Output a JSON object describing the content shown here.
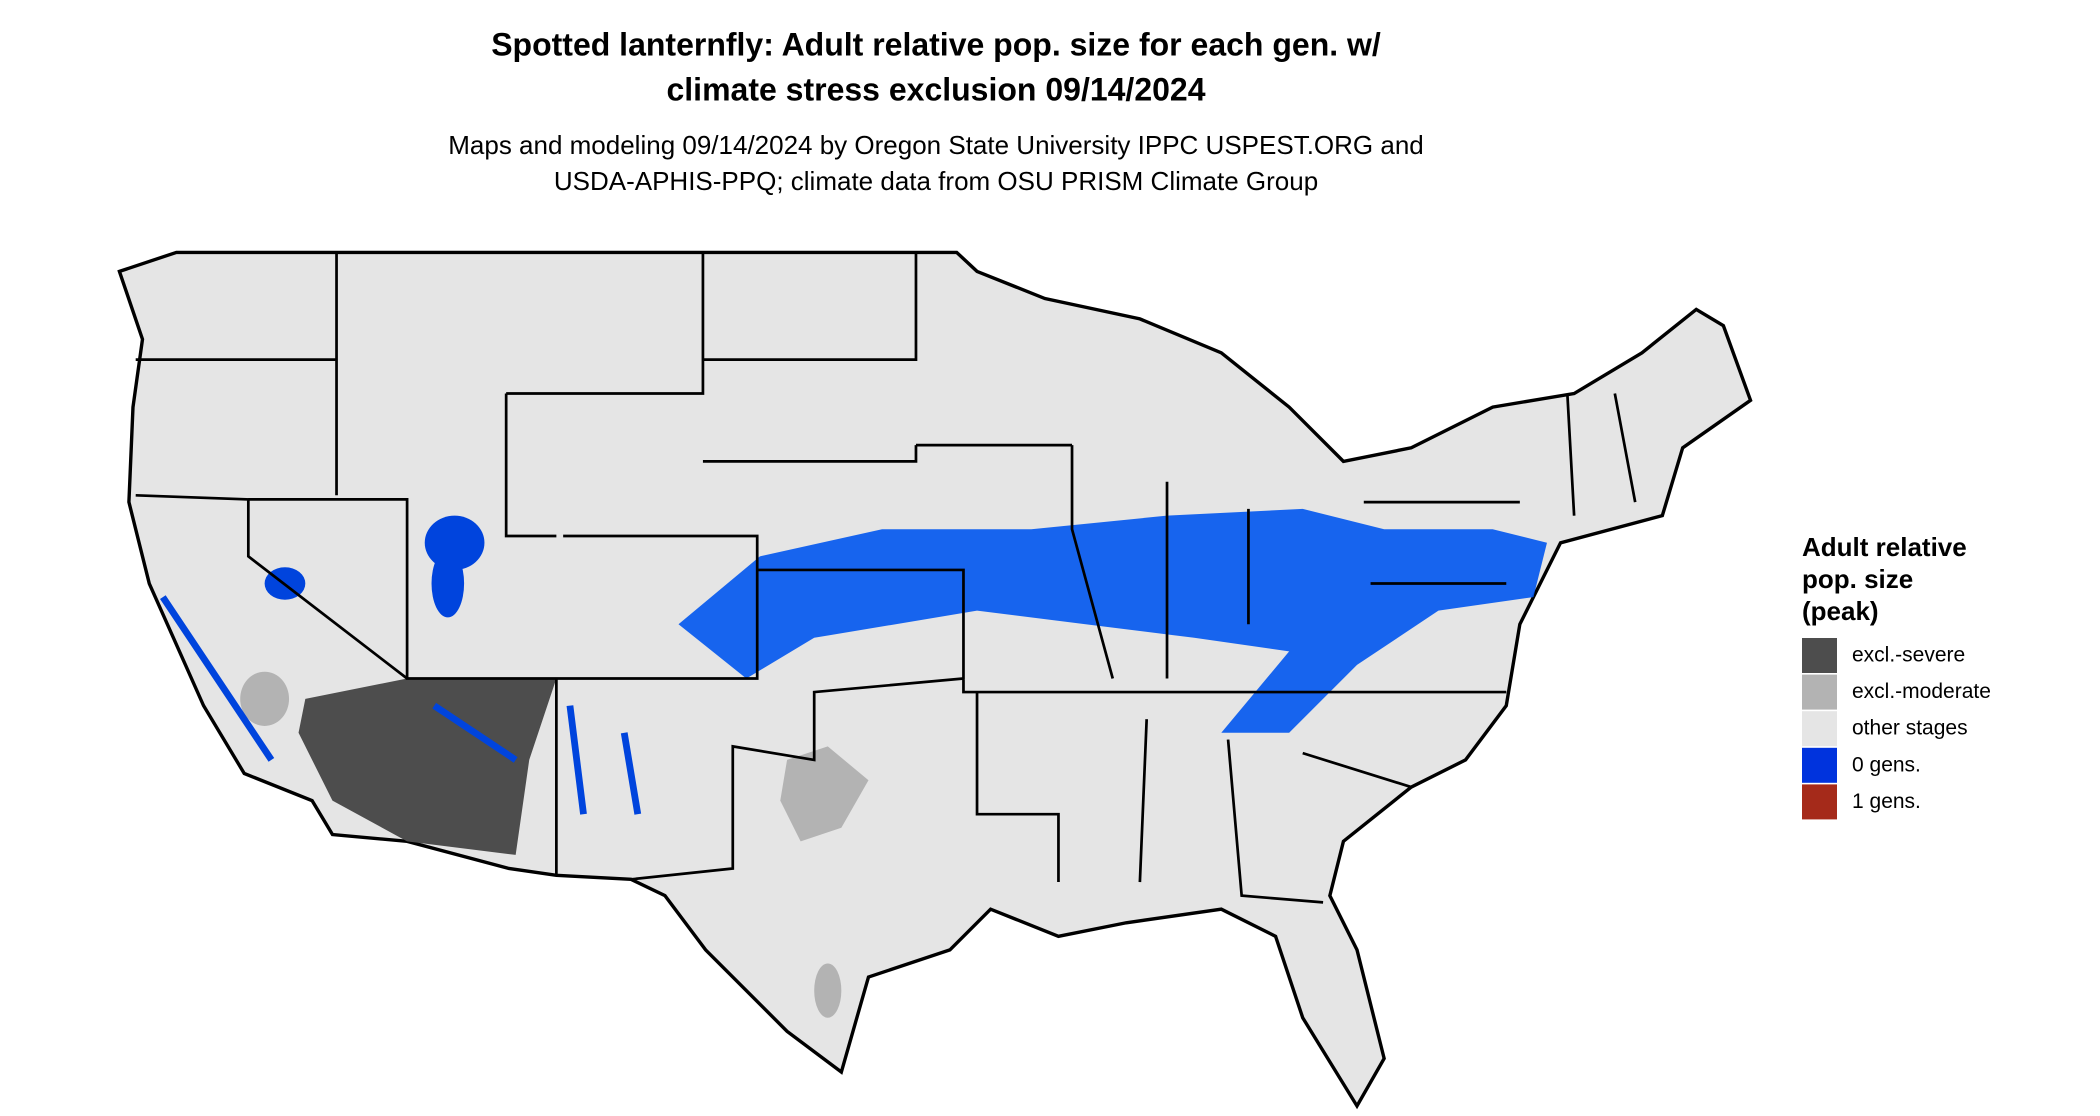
{
  "title": [
    "Spotted lanternfly: Adult relative pop. size for each gen. w/",
    "climate stress exclusion 09/14/2024"
  ],
  "subtitle": [
    "Maps and modeling 09/14/2024 by Oregon State University IPPC USPEST.ORG and",
    "USDA-APHIS-PPQ; climate data from OSU PRISM Climate Group"
  ],
  "legend": {
    "title": [
      "Adult relative",
      "pop. size",
      "(peak)"
    ],
    "items": [
      {
        "label": "excl.-severe",
        "color": "#4d4d4d"
      },
      {
        "label": "excl.-moderate",
        "color": "#b3b3b3"
      },
      {
        "label": "other stages",
        "color": "#e5e5e5"
      },
      {
        "label": "0 gens.",
        "color": "#0033dd"
      },
      {
        "label": "1 gens.",
        "color": "#a52a1a"
      }
    ]
  }
}
